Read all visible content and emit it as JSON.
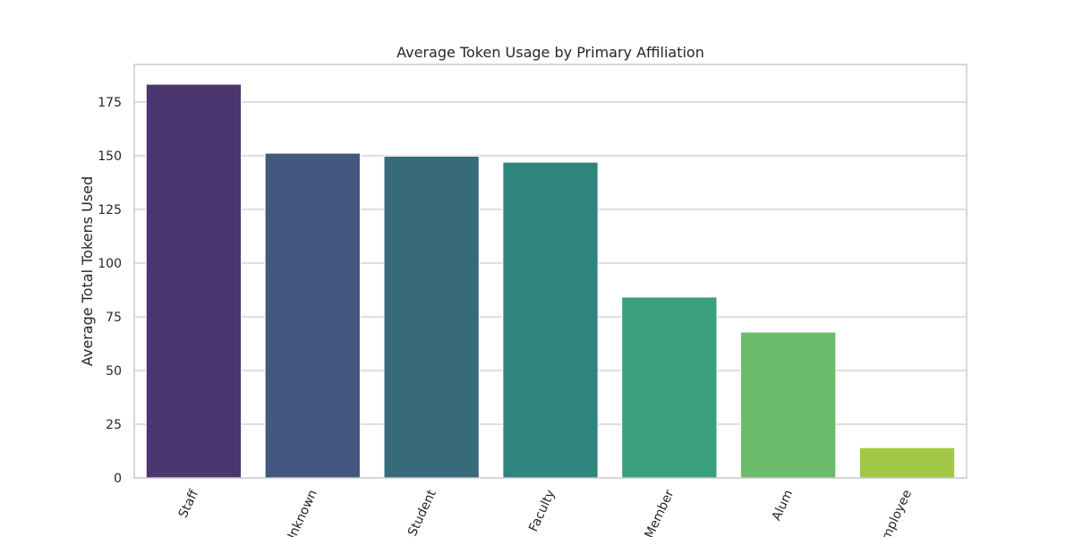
{
  "chart_data": {
    "type": "bar",
    "title": "Average Token Usage by Primary Affiliation",
    "xlabel": "",
    "ylabel": "Average Total Tokens Used",
    "categories": [
      "Staff",
      "Unknown",
      "Student",
      "Faculty",
      "Member",
      "Alum",
      "Employee"
    ],
    "values": [
      183.3,
      151.2,
      149.8,
      147.0,
      84.2,
      67.9,
      14.1
    ],
    "ylim": [
      0,
      192.5
    ],
    "yticks": [
      0,
      25,
      50,
      75,
      100,
      125,
      150,
      175
    ],
    "colors": [
      "#4b3670",
      "#44577e",
      "#376b7c",
      "#2e857d",
      "#3a9f7b",
      "#6bbb6a",
      "#a2c746"
    ],
    "grid": true,
    "frame_color": "#cccccc",
    "grid_color": "#cccccc"
  }
}
